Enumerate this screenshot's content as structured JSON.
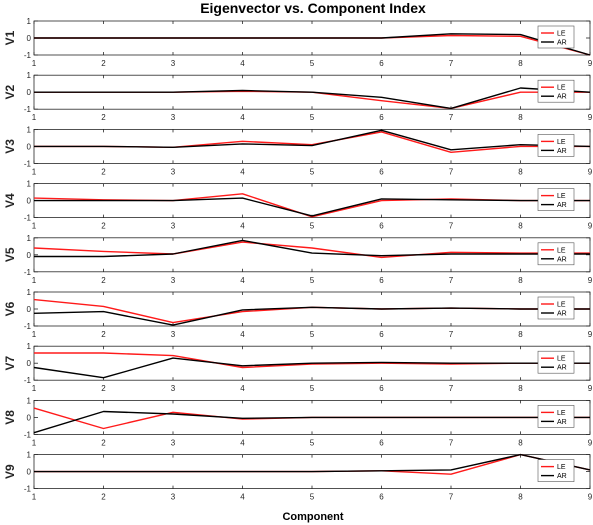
{
  "colors": {
    "LE": "#ff1a1a",
    "AR": "#000000",
    "axis": "#262626",
    "grid": "#dcdcdc"
  },
  "chart_data": {
    "type": "line",
    "title": "Eigenvector vs. Component Index",
    "xlabel": "Component",
    "x": [
      1,
      2,
      3,
      4,
      5,
      6,
      7,
      8,
      9
    ],
    "xlim": [
      1,
      9
    ],
    "ylim": [
      -1,
      1
    ],
    "yticks": [
      -1,
      0,
      1
    ],
    "grid": false,
    "legend_location": "right",
    "panels": [
      {
        "ylabel": "V1",
        "series": [
          {
            "name": "LE",
            "values": [
              0,
              0,
              0,
              0,
              0,
              0,
              0.15,
              0.1,
              -1
            ]
          },
          {
            "name": "AR",
            "values": [
              0,
              0,
              0,
              0,
              0,
              0,
              0.25,
              0.2,
              -1
            ]
          }
        ]
      },
      {
        "ylabel": "V2",
        "series": [
          {
            "name": "LE",
            "values": [
              0,
              0,
              0,
              0.05,
              0,
              -0.5,
              -0.95,
              0,
              0
            ]
          },
          {
            "name": "AR",
            "values": [
              0,
              0,
              0,
              0.1,
              0,
              -0.3,
              -0.95,
              0.25,
              0
            ]
          }
        ]
      },
      {
        "ylabel": "V3",
        "series": [
          {
            "name": "LE",
            "values": [
              0,
              0,
              -0.05,
              0.3,
              0.1,
              0.85,
              -0.35,
              0,
              0
            ]
          },
          {
            "name": "AR",
            "values": [
              0,
              0,
              -0.05,
              0.15,
              0.05,
              0.95,
              -0.2,
              0.1,
              0
            ]
          }
        ]
      },
      {
        "ylabel": "V4",
        "series": [
          {
            "name": "LE",
            "values": [
              0.15,
              0.05,
              0,
              0.4,
              -0.95,
              0,
              0.1,
              0,
              0
            ]
          },
          {
            "name": "AR",
            "values": [
              0,
              0,
              0,
              0.15,
              -0.9,
              0.1,
              0.05,
              0,
              0
            ]
          }
        ]
      },
      {
        "ylabel": "V5",
        "series": [
          {
            "name": "LE",
            "values": [
              0.4,
              0.2,
              0.05,
              0.75,
              0.4,
              -0.15,
              0.15,
              0.1,
              0.1
            ]
          },
          {
            "name": "AR",
            "values": [
              -0.1,
              -0.1,
              0.05,
              0.85,
              0.1,
              -0.05,
              0.05,
              0.05,
              0.05
            ]
          }
        ]
      },
      {
        "ylabel": "V6",
        "series": [
          {
            "name": "LE",
            "values": [
              0.55,
              0.15,
              -0.8,
              -0.15,
              0.1,
              0,
              0.05,
              0,
              0
            ]
          },
          {
            "name": "AR",
            "values": [
              -0.25,
              -0.15,
              -0.95,
              -0.05,
              0.1,
              0,
              0.05,
              0,
              0
            ]
          }
        ]
      },
      {
        "ylabel": "V7",
        "series": [
          {
            "name": "LE",
            "values": [
              0.6,
              0.6,
              0.45,
              -0.25,
              -0.05,
              0,
              -0.05,
              0,
              0
            ]
          },
          {
            "name": "AR",
            "values": [
              -0.25,
              -0.85,
              0.3,
              -0.15,
              0,
              0.05,
              0,
              0,
              0
            ]
          }
        ]
      },
      {
        "ylabel": "V8",
        "series": [
          {
            "name": "LE",
            "values": [
              0.55,
              -0.65,
              0.3,
              -0.1,
              0,
              0,
              0,
              0,
              0
            ]
          },
          {
            "name": "AR",
            "values": [
              -0.9,
              0.35,
              0.2,
              -0.05,
              0,
              0,
              0,
              0,
              0
            ]
          }
        ]
      },
      {
        "ylabel": "V9",
        "series": [
          {
            "name": "LE",
            "values": [
              0,
              0,
              0,
              0,
              0,
              0.05,
              -0.15,
              1,
              0.1
            ]
          },
          {
            "name": "AR",
            "values": [
              0,
              0,
              0,
              0,
              0,
              0.05,
              0.1,
              1,
              0.1
            ]
          }
        ]
      }
    ]
  }
}
